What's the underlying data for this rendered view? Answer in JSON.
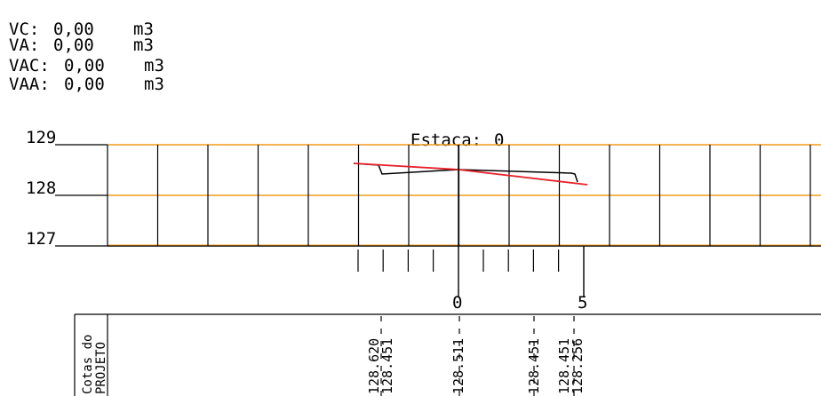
{
  "volumes": [
    {
      "label": "VC:",
      "value": "0,00",
      "unit": "m3"
    },
    {
      "label": "VA:",
      "value": "0,00",
      "unit": "m3"
    },
    {
      "label": "VAC:",
      "value": "0,00",
      "unit": "m3"
    },
    {
      "label": "VAA:",
      "value": "0,00",
      "unit": "m3"
    }
  ],
  "section": {
    "title_label": "Estaca:",
    "title_value": "0",
    "elevation_labels": [
      "129",
      "128",
      "127"
    ],
    "elevation_values": [
      129,
      128,
      127
    ],
    "offset_labels": [
      "0",
      "5"
    ],
    "colors": {
      "grid": "#f29a1a",
      "terrain": "#000000",
      "project": "#e8202a",
      "lines": "#000000"
    }
  },
  "table": {
    "row_title_line1": "Cotas do",
    "row_title_line2": "PROJETO",
    "cotas": [
      "128.620",
      "128.451",
      "128.511",
      "128.451",
      "128.451",
      "128.256"
    ]
  }
}
